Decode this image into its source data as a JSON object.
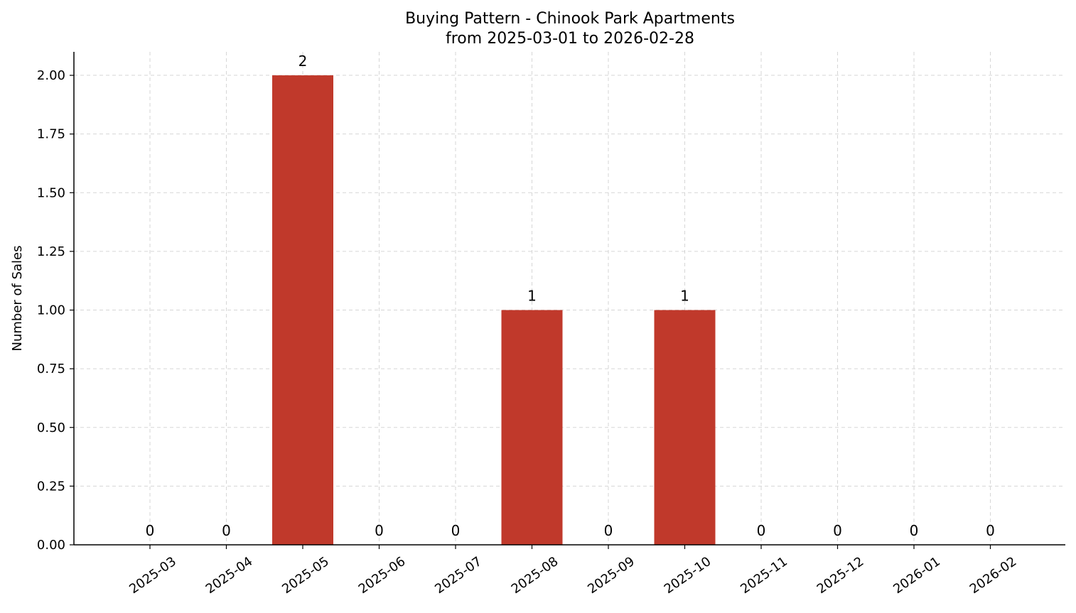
{
  "chart_data": {
    "type": "bar",
    "title": [
      "Buying Pattern - Chinook Park Apartments",
      "from 2025-03-01 to 2026-02-28"
    ],
    "xlabel": "",
    "ylabel": "Number of Sales",
    "categories": [
      "2025-03",
      "2025-04",
      "2025-05",
      "2025-06",
      "2025-07",
      "2025-08",
      "2025-09",
      "2025-10",
      "2025-11",
      "2025-12",
      "2026-01",
      "2026-02"
    ],
    "values": [
      0,
      0,
      2,
      0,
      0,
      1,
      0,
      1,
      0,
      0,
      0,
      0
    ],
    "data_labels": [
      "0",
      "0",
      "2",
      "0",
      "0",
      "1",
      "0",
      "1",
      "0",
      "0",
      "0",
      "0"
    ],
    "ylim": [
      0,
      2.1
    ],
    "yticks": [
      0,
      0.25,
      0.5,
      0.75,
      1.0,
      1.25,
      1.5,
      1.75,
      2.0
    ],
    "ytick_labels": [
      "0.00",
      "0.25",
      "0.50",
      "0.75",
      "1.00",
      "1.25",
      "1.50",
      "1.75",
      "2.00"
    ],
    "grid": true,
    "bar_color": "#c0392b"
  }
}
